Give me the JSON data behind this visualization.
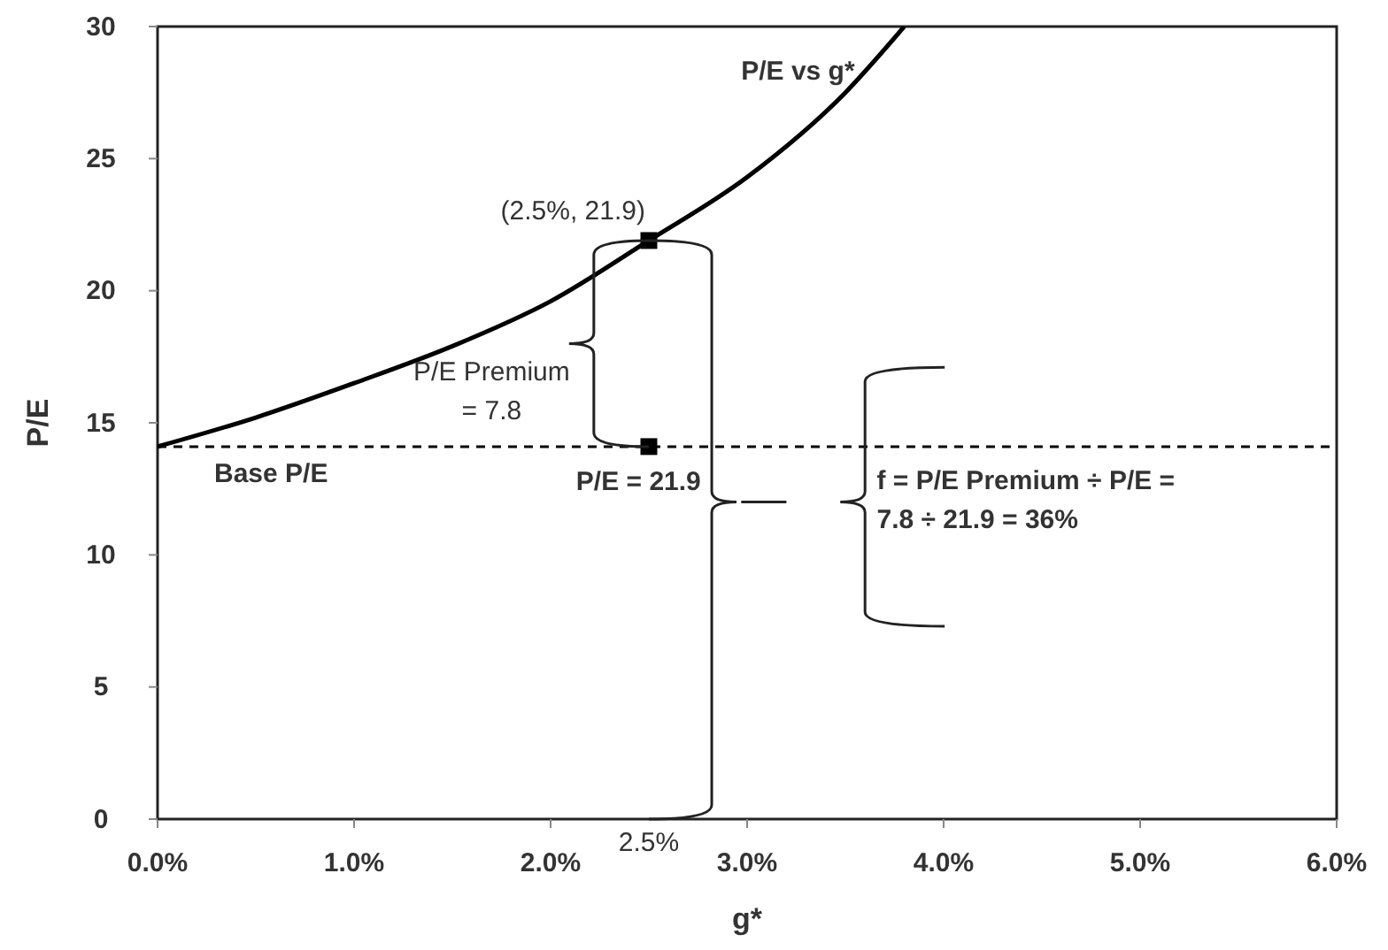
{
  "chart_data": {
    "type": "line",
    "xlabel": "g*",
    "ylabel": "P/E",
    "x": [
      0,
      0.5,
      1,
      1.5,
      2,
      2.5,
      3,
      3.5,
      3.8
    ],
    "series": [
      {
        "name": "P/E vs g*",
        "color": "#000000",
        "values": [
          14.1,
          15.2,
          16.5,
          17.9,
          19.6,
          21.9,
          24.3,
          27.5,
          30
        ],
        "line_style": "solid"
      },
      {
        "type": "scatter",
        "color": "#000000",
        "x": [
          2.5,
          2.5
        ],
        "values": [
          21.9,
          14.1
        ],
        "marker": "square"
      }
    ],
    "xlim": [
      0,
      6
    ],
    "xticks": [
      {
        "value": 0,
        "label": "0.0%"
      },
      {
        "value": 1,
        "label": "1.0%"
      },
      {
        "value": 2,
        "label": "2.0%"
      },
      {
        "value": 3,
        "label": "3.0%"
      },
      {
        "value": 4,
        "label": "4.0%"
      },
      {
        "value": 5,
        "label": "5.0%"
      },
      {
        "value": 6,
        "label": "6.0%"
      }
    ],
    "ylim": [
      0,
      30
    ],
    "yticks": [
      0,
      5,
      10,
      15,
      20,
      25,
      30
    ],
    "ref_lines": [
      {
        "axis": "y",
        "value": 14.1,
        "label": "Base P/E",
        "color": "#000000",
        "line_style": "dashed"
      }
    ],
    "annotations": [
      {
        "text": "(2.5%, 21.9)",
        "x": 2.5,
        "y": 21.9
      },
      "P/E Premium = 7.8",
      {
        "text": "P/E = 21.9",
        "x": 2.5,
        "y": 21.9
      },
      "2.5%",
      "f = P/E Premium ÷ P/E = 7.8 ÷ 21.9 = 36%"
    ],
    "grid": false
  }
}
